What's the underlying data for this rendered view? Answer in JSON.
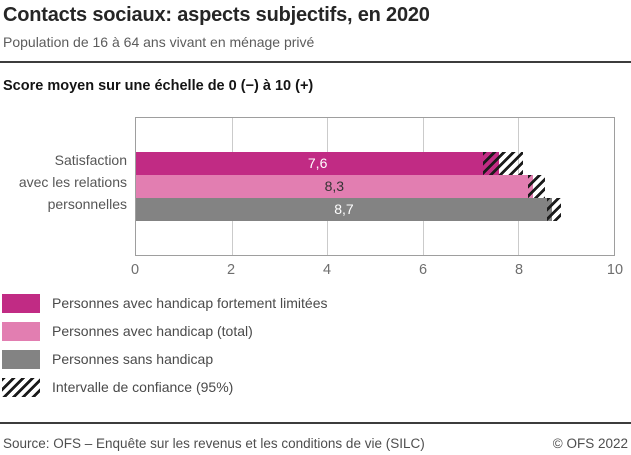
{
  "header": {
    "title": "Contacts sociaux: aspects subjectifs, en 2020",
    "subtitle": "Population de 16 à 64 ans vivant en ménage privé",
    "axis_note": "Score moyen sur une échelle de 0 (−) à 10 (+)"
  },
  "chart_data": {
    "type": "bar",
    "orientation": "horizontal",
    "title": "Contacts sociaux: aspects subjectifs, en 2020",
    "subtitle": "Population de 16 à 64 ans vivant en ménage privé",
    "xlabel_note": "Score moyen sur une échelle de 0 (−) à 10 (+)",
    "categories": [
      "Satisfaction avec les relations personnelles"
    ],
    "category_lines": [
      "Satisfaction",
      "avec les relations",
      "personnelles"
    ],
    "series": [
      {
        "name": "Personnes avec handicap fortement limitées",
        "values": [
          7.6
        ],
        "value_labels": [
          "7,6"
        ],
        "color": "#c12b84",
        "value_text_color": "#ffffff",
        "ci95": [
          [
            7.25,
            8.1
          ]
        ]
      },
      {
        "name": "Personnes avec handicap (total)",
        "values": [
          8.3
        ],
        "value_labels": [
          "8,3"
        ],
        "color": "#e27eb1",
        "value_text_color": "#333333",
        "ci95": [
          [
            8.2,
            8.55
          ]
        ]
      },
      {
        "name": "Personnes sans handicap",
        "values": [
          8.7
        ],
        "value_labels": [
          "8,7"
        ],
        "color": "#838383",
        "value_text_color": "#ffffff",
        "ci95": [
          [
            8.6,
            8.9
          ]
        ]
      }
    ],
    "xlim": [
      0,
      10
    ],
    "xticks": [
      "0",
      "2",
      "4",
      "6",
      "8",
      "10"
    ],
    "grid": "vertical gridlines at ticks",
    "legend_position": "bottom-left",
    "ci_label": "Intervalle de confiance (95%)"
  },
  "legend": {
    "items": [
      {
        "label": "Personnes avec handicap fortement limitées",
        "swatch": "#c12b84"
      },
      {
        "label": "Personnes avec handicap (total)",
        "swatch": "#e27eb1"
      },
      {
        "label": "Personnes sans handicap",
        "swatch": "#838383"
      },
      {
        "label": "Intervalle de confiance (95%)",
        "swatch": "hatch"
      }
    ]
  },
  "footer": {
    "source": "Source: OFS – Enquête sur les revenus et les conditions de vie (SILC)",
    "copyright": "© OFS 2022"
  }
}
